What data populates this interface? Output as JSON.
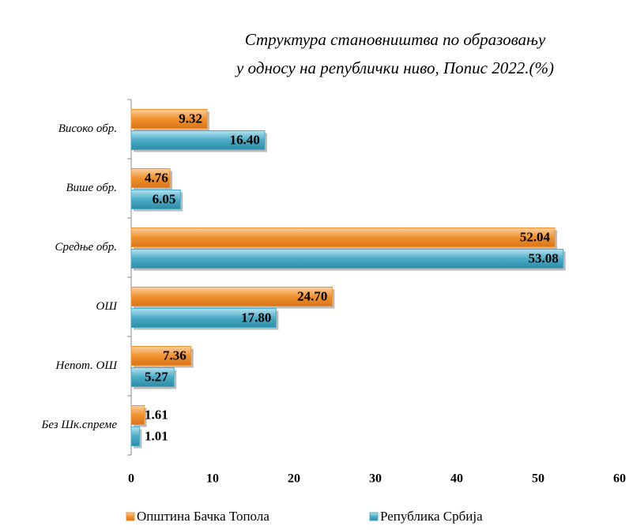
{
  "chart_data": {
    "type": "hbar",
    "title": [
      "Структура становништва по образовању",
      "у односу на републички ниво, Попис 2022.(%)"
    ],
    "categories": [
      "Високо обр.",
      "Више обр.",
      "Средње обр.",
      "ОШ",
      "Непот. ОШ",
      "Без Шк.спреме"
    ],
    "series": [
      {
        "name": "Општина Бачка Топола",
        "color": "#f0922e",
        "values": [
          9.32,
          4.76,
          52.04,
          24.7,
          7.36,
          1.61
        ],
        "value_labels": [
          "9.32",
          "4.76",
          "52.04",
          "24.70",
          "7.36",
          "1.61"
        ]
      },
      {
        "name": "Република Србија",
        "color": "#4bacc6",
        "values": [
          16.4,
          6.05,
          53.08,
          17.8,
          5.27,
          1.01
        ],
        "value_labels": [
          "16.40",
          "6.05",
          "53.08",
          "17.80",
          "5.27",
          "1.01"
        ]
      }
    ],
    "xlim": [
      0,
      60
    ],
    "xticks": [
      0,
      10,
      20,
      30,
      40,
      50,
      60
    ],
    "legend": "bottom"
  }
}
